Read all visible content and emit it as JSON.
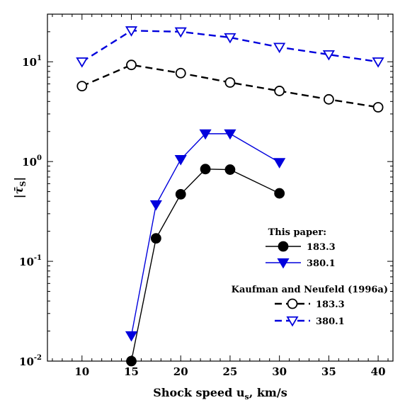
{
  "chart_data": {
    "type": "line",
    "xlabel": "Shock speed u",
    "xlabel_sub": "s",
    "xlabel_suffix": ", km/s",
    "ylabel": "|τ̄",
    "ylabel_sub": "S",
    "ylabel_suffix": "|",
    "yscale": "log",
    "xlim": [
      6.5,
      41.5
    ],
    "ylim": [
      0.01,
      30
    ],
    "x_ticks": [
      10,
      15,
      20,
      25,
      30,
      35,
      40
    ],
    "y_ticks": [
      {
        "value": 0.01,
        "base": "10",
        "exp": "-2"
      },
      {
        "value": 0.1,
        "base": "10",
        "exp": "-1"
      },
      {
        "value": 1,
        "base": "10",
        "exp": "0"
      },
      {
        "value": 10,
        "base": "10",
        "exp": "1"
      }
    ],
    "grid": false,
    "legend_position": "lower-right",
    "legend_groups": [
      {
        "title": "This paper:"
      },
      {
        "title": "Kaufman and Neufeld (1996a)"
      }
    ],
    "series": [
      {
        "name": "183.3",
        "group": 0,
        "color": "#000000",
        "line": "solid",
        "marker": "circle",
        "filled": true,
        "x": [
          15,
          17.5,
          20,
          22.5,
          25,
          30
        ],
        "y": [
          0.01,
          0.17,
          0.47,
          0.84,
          0.83,
          0.48
        ]
      },
      {
        "name": "380.1",
        "group": 0,
        "color": "#0000dd",
        "line": "solid",
        "marker": "triangle-down",
        "filled": true,
        "x": [
          15,
          17.5,
          20,
          22.5,
          25,
          30
        ],
        "y": [
          0.018,
          0.37,
          1.05,
          1.9,
          1.9,
          0.98
        ]
      },
      {
        "name": "183.3",
        "group": 1,
        "color": "#000000",
        "line": "dashed",
        "marker": "circle",
        "filled": false,
        "x": [
          10,
          15,
          20,
          25,
          30,
          35,
          40
        ],
        "y": [
          5.7,
          9.3,
          7.7,
          6.2,
          5.1,
          4.2,
          3.5
        ]
      },
      {
        "name": "380.1",
        "group": 1,
        "color": "#0000dd",
        "line": "dashed",
        "marker": "triangle-down",
        "filled": false,
        "x": [
          10,
          15,
          20,
          25,
          30,
          35,
          40
        ],
        "y": [
          10.0,
          20.5,
          20.0,
          17.5,
          14.0,
          11.8,
          10.0
        ]
      }
    ]
  }
}
